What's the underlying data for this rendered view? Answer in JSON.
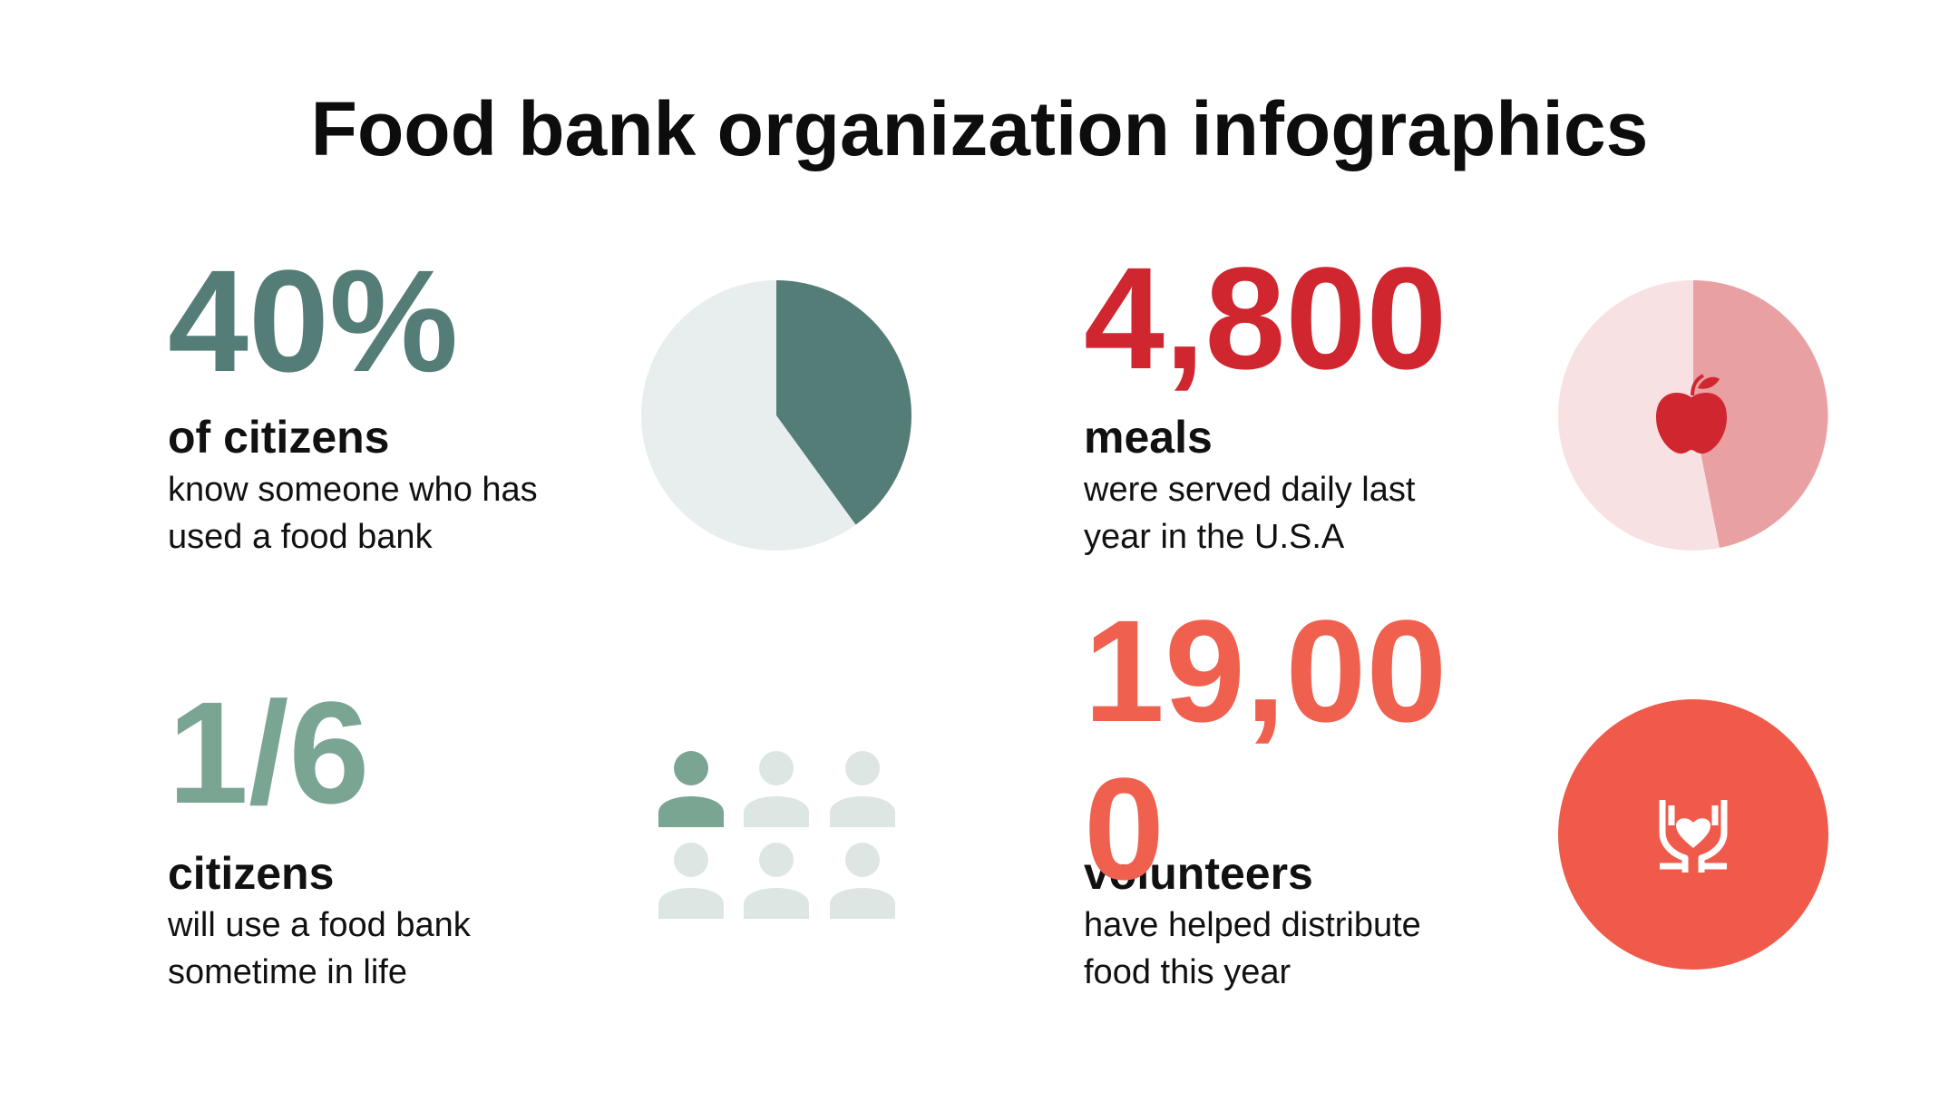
{
  "title": "Food bank organization infographics",
  "stats": [
    {
      "figure": "40%",
      "share": 40,
      "label": "of citizens",
      "description": "know someone who has used a food bank"
    },
    {
      "figure": "4,800",
      "label": "meals",
      "description": "were served daily last year in the U.S.A"
    },
    {
      "figure": "1/6",
      "label": "citizens",
      "description": "will use a food bank sometime in life"
    },
    {
      "figure": "19,000",
      "label": "volunteers",
      "description": "have helped distribute food this year"
    }
  ]
}
